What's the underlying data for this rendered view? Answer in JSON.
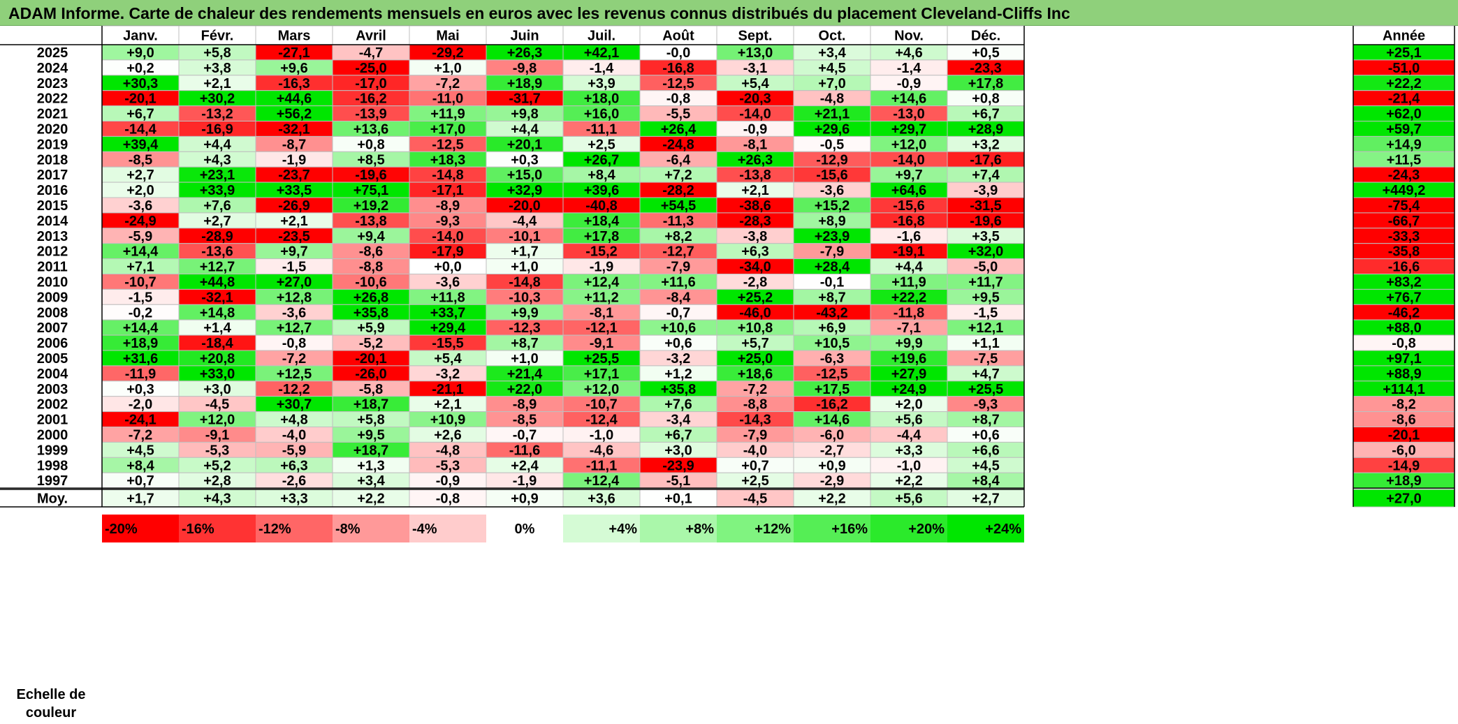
{
  "title": "ADAM Informe. Carte de chaleur des rendements mensuels en euros avec les revenus connus distribués du placement Cleveland-Cliffs Inc",
  "chart_data": {
    "type": "heatmap",
    "months": [
      "Janv.",
      "Févr.",
      "Mars",
      "Avril",
      "Mai",
      "Juin",
      "Juil.",
      "Août",
      "Sept.",
      "Oct.",
      "Nov.",
      "Déc."
    ],
    "year_header": "Année",
    "rows": [
      {
        "year": "2025",
        "values": [
          "+9,0",
          "+5,8",
          "-27,1",
          "-4,7",
          "-29,2",
          "+26,3",
          "+42,1",
          "-0,0",
          "+13,0",
          "+3,4",
          "+4,6",
          "+0,5"
        ],
        "annual": "+25,1"
      },
      {
        "year": "2024",
        "values": [
          "+0,2",
          "+3,8",
          "+9,6",
          "-25,0",
          "+1,0",
          "-9,8",
          "-1,4",
          "-16,8",
          "-3,1",
          "+4,5",
          "-1,4",
          "-23,3"
        ],
        "annual": "-51,0"
      },
      {
        "year": "2023",
        "values": [
          "+30,3",
          "+2,1",
          "-16,3",
          "-17,0",
          "-7,2",
          "+18,9",
          "+3,9",
          "-12,5",
          "+5,4",
          "+7,0",
          "-0,9",
          "+17,8"
        ],
        "annual": "+22,2"
      },
      {
        "year": "2022",
        "values": [
          "-20,1",
          "+30,2",
          "+44,6",
          "-16,2",
          "-11,0",
          "-31,7",
          "+18,0",
          "-0,8",
          "-20,3",
          "-4,8",
          "+14,6",
          "+0,8"
        ],
        "annual": "-21,4"
      },
      {
        "year": "2021",
        "values": [
          "+6,7",
          "-13,2",
          "+56,2",
          "-13,9",
          "+11,9",
          "+9,8",
          "+16,0",
          "-5,5",
          "-14,0",
          "+21,1",
          "-13,0",
          "+6,7"
        ],
        "annual": "+62,0"
      },
      {
        "year": "2020",
        "values": [
          "-14,4",
          "-16,9",
          "-32,1",
          "+13,6",
          "+17,0",
          "+4,4",
          "-11,1",
          "+26,4",
          "-0,9",
          "+29,6",
          "+29,7",
          "+28,9"
        ],
        "annual": "+59,7"
      },
      {
        "year": "2019",
        "values": [
          "+39,4",
          "+4,4",
          "-8,7",
          "+0,8",
          "-12,5",
          "+20,1",
          "+2,5",
          "-24,8",
          "-8,1",
          "-0,5",
          "+12,0",
          "+3,2"
        ],
        "annual": "+14,9"
      },
      {
        "year": "2018",
        "values": [
          "-8,5",
          "+4,3",
          "-1,9",
          "+8,5",
          "+18,3",
          "+0,3",
          "+26,7",
          "-6,4",
          "+26,3",
          "-12,9",
          "-14,0",
          "-17,6"
        ],
        "annual": "+11,5"
      },
      {
        "year": "2017",
        "values": [
          "+2,7",
          "+23,1",
          "-23,7",
          "-19,6",
          "-14,8",
          "+15,0",
          "+8,4",
          "+7,2",
          "-13,8",
          "-15,6",
          "+9,7",
          "+7,4"
        ],
        "annual": "-24,3"
      },
      {
        "year": "2016",
        "values": [
          "+2,0",
          "+33,9",
          "+33,5",
          "+75,1",
          "-17,1",
          "+32,9",
          "+39,6",
          "-28,2",
          "+2,1",
          "-3,6",
          "+64,6",
          "-3,9"
        ],
        "annual": "+449,2"
      },
      {
        "year": "2015",
        "values": [
          "-3,6",
          "+7,6",
          "-26,9",
          "+19,2",
          "-8,9",
          "-20,0",
          "-40,8",
          "+54,5",
          "-38,6",
          "+15,2",
          "-15,6",
          "-31,5"
        ],
        "annual": "-75,4"
      },
      {
        "year": "2014",
        "values": [
          "-24,9",
          "+2,7",
          "+2,1",
          "-13,8",
          "-9,3",
          "-4,4",
          "+18,4",
          "-11,3",
          "-28,3",
          "+8,9",
          "-16,8",
          "-19,6"
        ],
        "annual": "-66,7"
      },
      {
        "year": "2013",
        "values": [
          "-5,9",
          "-28,9",
          "-23,5",
          "+9,4",
          "-14,0",
          "-10,1",
          "+17,8",
          "+8,2",
          "-3,8",
          "+23,9",
          "-1,6",
          "+3,5"
        ],
        "annual": "-33,3"
      },
      {
        "year": "2012",
        "values": [
          "+14,4",
          "-13,6",
          "+9,7",
          "-8,6",
          "-17,9",
          "+1,7",
          "-15,2",
          "-12,7",
          "+6,3",
          "-7,9",
          "-19,1",
          "+32,0"
        ],
        "annual": "-35,8"
      },
      {
        "year": "2011",
        "values": [
          "+7,1",
          "+12,7",
          "-1,5",
          "-8,8",
          "+0,0",
          "+1,0",
          "-1,9",
          "-7,9",
          "-34,0",
          "+28,4",
          "+4,4",
          "-5,0"
        ],
        "annual": "-16,6"
      },
      {
        "year": "2010",
        "values": [
          "-10,7",
          "+44,8",
          "+27,0",
          "-10,6",
          "-3,6",
          "-14,8",
          "+12,4",
          "+11,6",
          "-2,8",
          "-0,1",
          "+11,9",
          "+11,7"
        ],
        "annual": "+83,2"
      },
      {
        "year": "2009",
        "values": [
          "-1,5",
          "-32,1",
          "+12,8",
          "+26,8",
          "+11,8",
          "-10,3",
          "+11,2",
          "-8,4",
          "+25,2",
          "+8,7",
          "+22,2",
          "+9,5"
        ],
        "annual": "+76,7"
      },
      {
        "year": "2008",
        "values": [
          "-0,2",
          "+14,8",
          "-3,6",
          "+35,8",
          "+33,7",
          "+9,9",
          "-8,1",
          "-0,7",
          "-46,0",
          "-43,2",
          "-11,8",
          "-1,5"
        ],
        "annual": "-46,2"
      },
      {
        "year": "2007",
        "values": [
          "+14,4",
          "+1,4",
          "+12,7",
          "+5,9",
          "+29,4",
          "-12,3",
          "-12,1",
          "+10,6",
          "+10,8",
          "+6,9",
          "-7,1",
          "+12,1"
        ],
        "annual": "+88,0"
      },
      {
        "year": "2006",
        "values": [
          "+18,9",
          "-18,4",
          "-0,8",
          "-5,2",
          "-15,5",
          "+8,7",
          "-9,1",
          "+0,6",
          "+5,7",
          "+10,5",
          "+9,9",
          "+1,1"
        ],
        "annual": "-0,8"
      },
      {
        "year": "2005",
        "values": [
          "+31,6",
          "+20,8",
          "-7,2",
          "-20,1",
          "+5,4",
          "+1,0",
          "+25,5",
          "-3,2",
          "+25,0",
          "-6,3",
          "+19,6",
          "-7,5"
        ],
        "annual": "+97,1"
      },
      {
        "year": "2004",
        "values": [
          "-11,9",
          "+33,0",
          "+12,5",
          "-26,0",
          "-3,2",
          "+21,4",
          "+17,1",
          "+1,2",
          "+18,6",
          "-12,5",
          "+27,9",
          "+4,7"
        ],
        "annual": "+88,9"
      },
      {
        "year": "2003",
        "values": [
          "+0,3",
          "+3,0",
          "-12,2",
          "-5,8",
          "-21,1",
          "+22,0",
          "+12,0",
          "+35,8",
          "-7,2",
          "+17,5",
          "+24,9",
          "+25,5"
        ],
        "annual": "+114,1"
      },
      {
        "year": "2002",
        "values": [
          "-2,0",
          "-4,5",
          "+30,7",
          "+18,7",
          "+2,1",
          "-8,9",
          "-10,7",
          "+7,6",
          "-8,8",
          "-16,2",
          "+2,0",
          "-9,3"
        ],
        "annual": "-8,2"
      },
      {
        "year": "2001",
        "values": [
          "-24,1",
          "+12,0",
          "+4,8",
          "+5,8",
          "+10,9",
          "-8,5",
          "-12,4",
          "-3,4",
          "-14,3",
          "+14,6",
          "+5,6",
          "+8,7"
        ],
        "annual": "-8,6"
      },
      {
        "year": "2000",
        "values": [
          "-7,2",
          "-9,1",
          "-4,0",
          "+9,5",
          "+2,6",
          "-0,7",
          "-1,0",
          "+6,7",
          "-7,9",
          "-6,0",
          "-4,4",
          "+0,6"
        ],
        "annual": "-20,1"
      },
      {
        "year": "1999",
        "values": [
          "+4,5",
          "-5,3",
          "-5,9",
          "+18,7",
          "-4,8",
          "-11,6",
          "-4,6",
          "+3,0",
          "-4,0",
          "-2,7",
          "+3,3",
          "+6,6"
        ],
        "annual": "-6,0"
      },
      {
        "year": "1998",
        "values": [
          "+8,4",
          "+5,2",
          "+6,3",
          "+1,3",
          "-5,3",
          "+2,4",
          "-11,1",
          "-23,9",
          "+0,7",
          "+0,9",
          "-1,0",
          "+4,5"
        ],
        "annual": "-14,9"
      },
      {
        "year": "1997",
        "values": [
          "+0,7",
          "+2,8",
          "-2,6",
          "+3,4",
          "-0,9",
          "-1,9",
          "+12,4",
          "-5,1",
          "+2,5",
          "-2,9",
          "+2,2",
          "+8,4"
        ],
        "annual": "+18,9"
      }
    ],
    "average": {
      "label": "Moy.",
      "values": [
        "+1,7",
        "+4,3",
        "+3,3",
        "+2,2",
        "-0,8",
        "+0,9",
        "+3,6",
        "+0,1",
        "-4,5",
        "+2,2",
        "+5,6",
        "+2,7"
      ],
      "annual": "+27,0"
    },
    "scale": {
      "label_line1": "Echelle de",
      "label_line2": "couleur",
      "stops": [
        {
          "label": "-20%",
          "value": -20
        },
        {
          "label": "-16%",
          "value": -16
        },
        {
          "label": "-12%",
          "value": -12
        },
        {
          "label": "-8%",
          "value": -8
        },
        {
          "label": "-4%",
          "value": -4
        },
        {
          "label": "0%",
          "value": 0
        },
        {
          "label": "+4%",
          "value": 4
        },
        {
          "label": "+8%",
          "value": 8
        },
        {
          "label": "+12%",
          "value": 12
        },
        {
          "label": "+16%",
          "value": 16
        },
        {
          "label": "+20%",
          "value": 20
        },
        {
          "label": "+24%",
          "value": 24
        }
      ]
    },
    "colors": {
      "negative": "#ff0000",
      "neutral": "#ffffff",
      "positive": "#00e600",
      "grid": "#bfbfbf",
      "border": "#000000"
    }
  }
}
